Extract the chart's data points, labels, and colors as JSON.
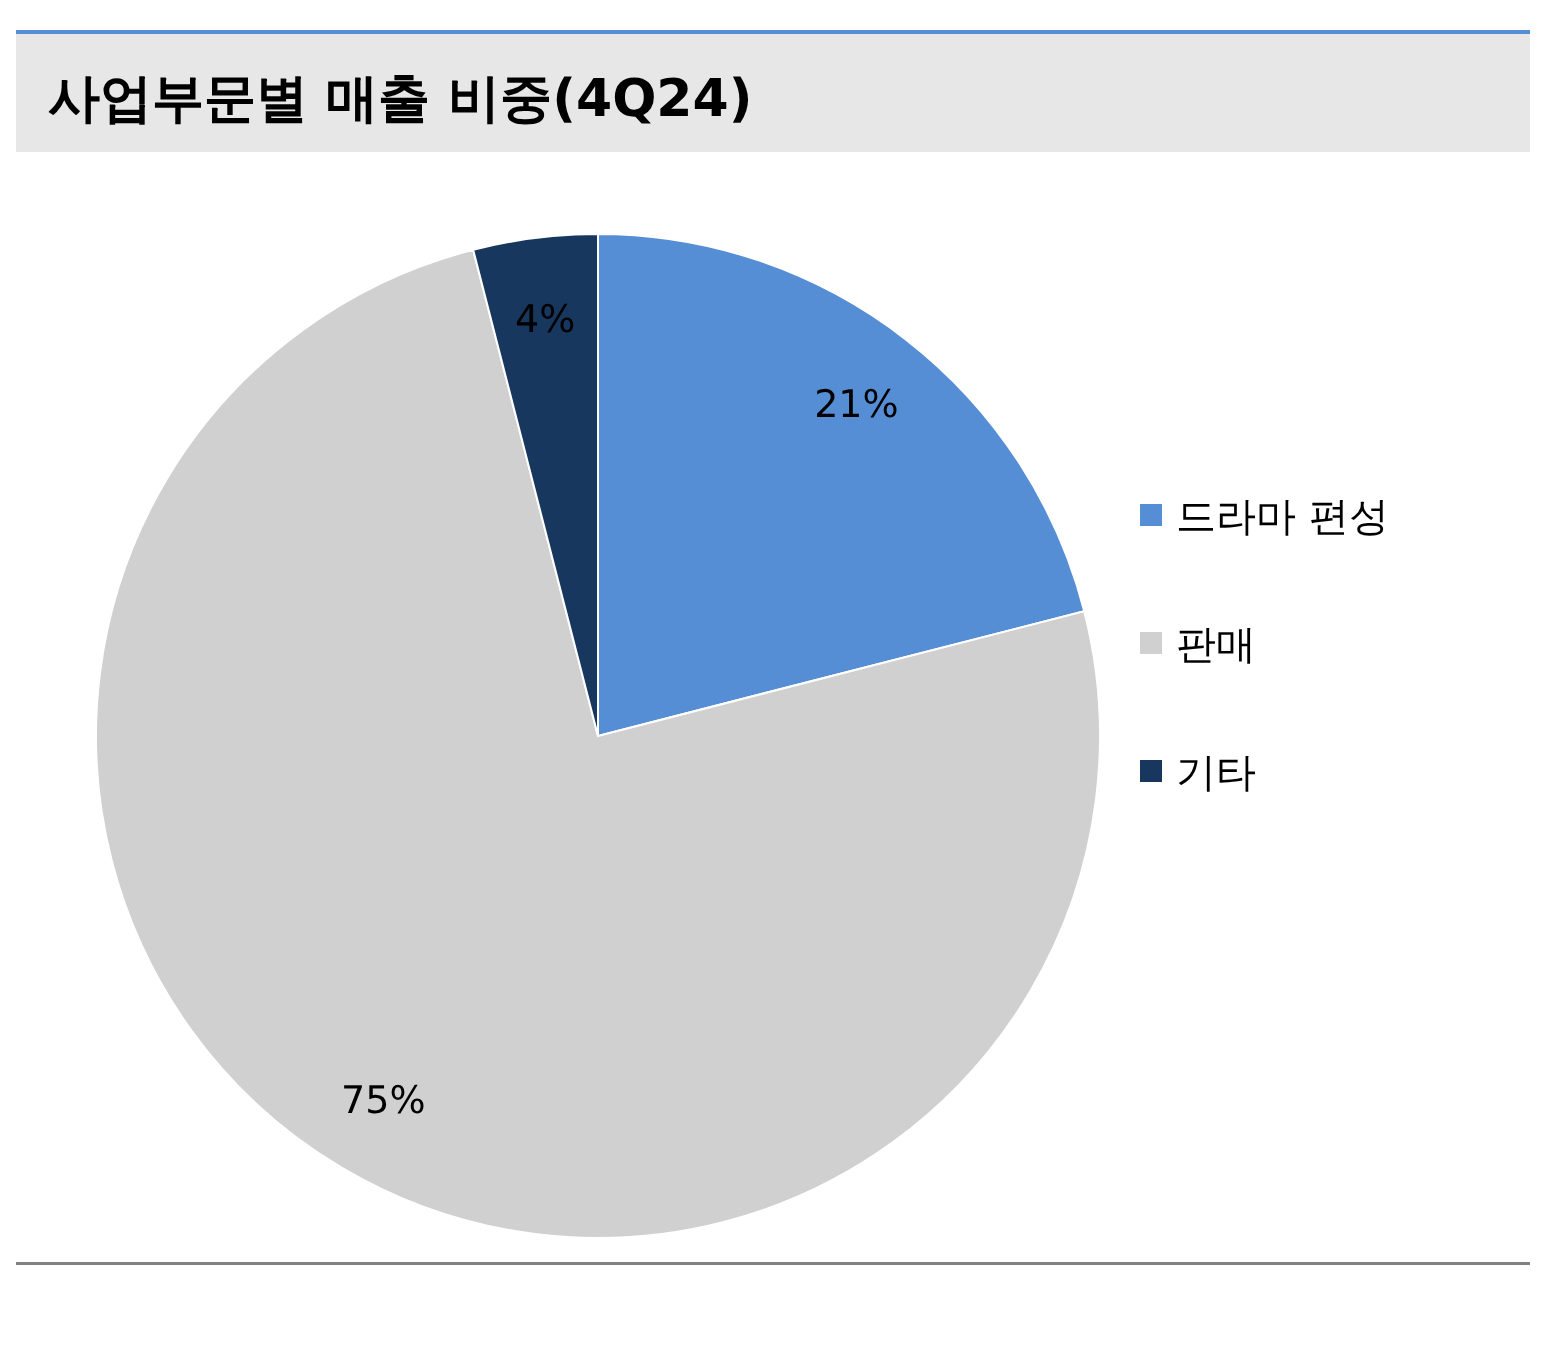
{
  "chart_data": {
    "type": "pie",
    "title": "사업부문별 매출 비중(4Q24)",
    "categories": [
      "드라마 편성",
      "판매",
      "기타"
    ],
    "values": [
      21,
      75,
      4
    ],
    "colors": [
      "#558ed5",
      "#d0d0d0",
      "#17375e"
    ],
    "value_labels": [
      "21%",
      "75%",
      "4%"
    ],
    "legend": "right"
  }
}
